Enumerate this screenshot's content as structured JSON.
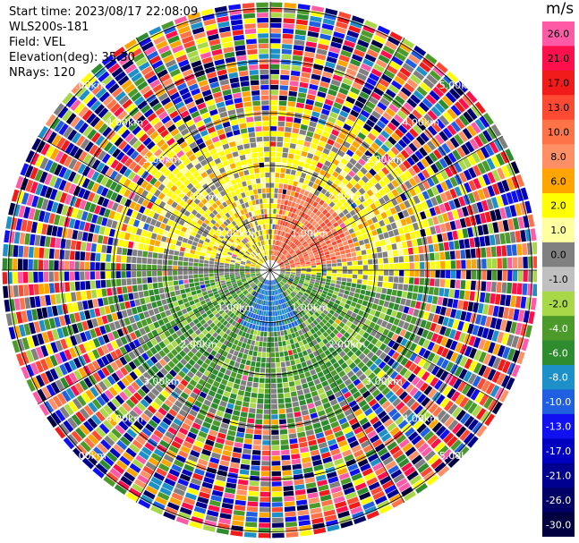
{
  "header": {
    "start_time": "Start time: 2023/08/17 22:08:09",
    "instrument": "WLS200s-181",
    "field": "Field: VEL",
    "elevation": "Elevation(deg): 35.30",
    "nrays": "NRays: 120"
  },
  "range_rings": [
    {
      "label": "1.00km"
    },
    {
      "label": "2.00km"
    },
    {
      "label": "3.00km"
    },
    {
      "label": "4.00km"
    },
    {
      "label": "5.00km"
    }
  ],
  "colorbar": {
    "unit": "m/s",
    "ticks": [
      "26.0",
      "21.0",
      "17.0",
      "13.0",
      "10.0",
      "8.0",
      "6.0",
      "2.0",
      "1.0",
      "0.0",
      "-1.0",
      "-2.0",
      "-4.0",
      "-6.0",
      "-8.0",
      "-10.0",
      "-13.0",
      "-17.0",
      "-21.0",
      "-26.0",
      "-30.0"
    ],
    "colors": [
      "#ff5aa6",
      "#ff0f4c",
      "#f21b1b",
      "#ff4a33",
      "#ff7348",
      "#ff8f64",
      "#ffa500",
      "#ffff00",
      "#ffffa0",
      "#808080",
      "#c0c0c0",
      "#a8d848",
      "#4c9a2a",
      "#2e8b2e",
      "#1e90c8",
      "#1f5fe0",
      "#1010f0",
      "#0000c0",
      "#000090",
      "#000066",
      "#000040"
    ]
  },
  "colors": {
    "background": "#ffffff",
    "ring_line": "#000000"
  }
}
